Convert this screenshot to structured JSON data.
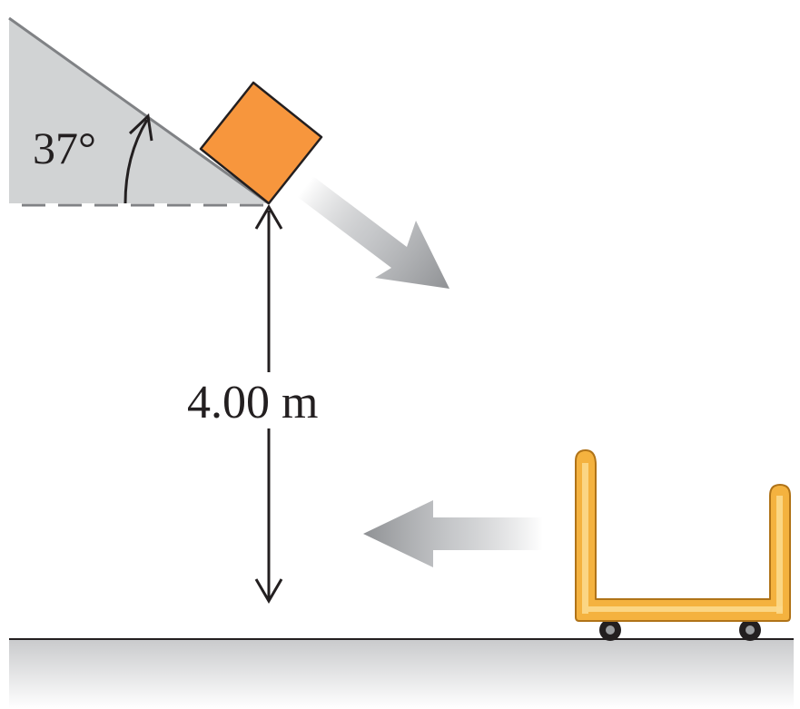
{
  "angle": {
    "label": "37°",
    "value_deg": 37
  },
  "height": {
    "label": "4.00 m",
    "value_m": 4.0
  },
  "colors": {
    "incline_fill": "#d1d3d4",
    "incline_edge": "#808285",
    "block": "#f7963d",
    "block_edge": "#231f20",
    "cart": "#f4b23f",
    "ground": "#d9dadb",
    "arrow": "#9a9c9f",
    "line": "#231f20"
  },
  "objects": {
    "block": "block-icon",
    "cart": "cart-icon",
    "velocity_block": "velocity-arrow-icon",
    "velocity_cart": "velocity-arrow-icon"
  }
}
